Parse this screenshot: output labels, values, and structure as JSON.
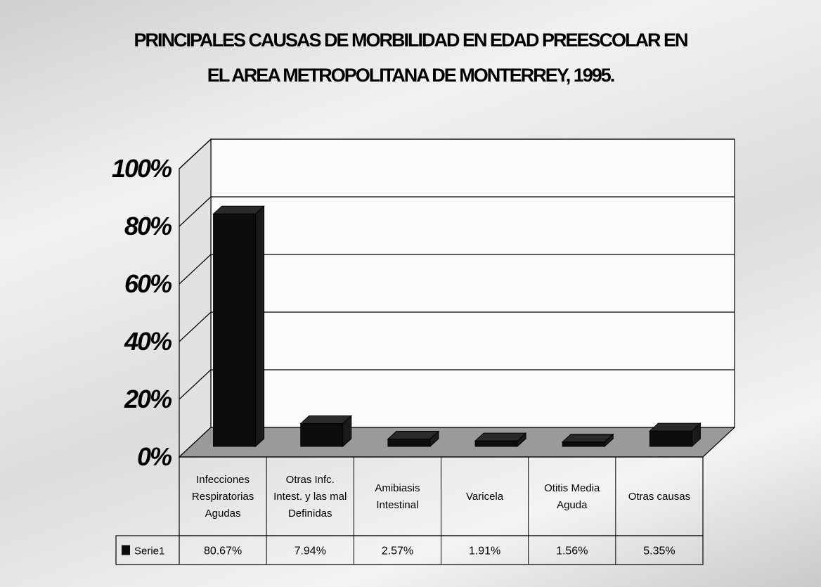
{
  "chart_data": {
    "type": "bar",
    "title": "PRINCIPALES CAUSAS DE MORBILIDAD EN EDAD PREESCOLAR EN",
    "subtitle": "EL AREA METROPOLITANA DE MONTERREY, 1995.",
    "categories": [
      [
        "Infecciones",
        "Respiratorias",
        "Agudas"
      ],
      [
        "Otras Infc.",
        "Intest. y las mal",
        "Definidas"
      ],
      [
        "Amibiasis",
        "Intestinal"
      ],
      [
        "Varicela"
      ],
      [
        "Otitis Media",
        "Aguda"
      ],
      [
        "Otras causas"
      ]
    ],
    "series": [
      {
        "name": "Serie1",
        "values": [
          80.67,
          7.94,
          2.57,
          1.91,
          1.56,
          5.35
        ],
        "labels": [
          "80.67%",
          "7.94%",
          "2.57%",
          "1.91%",
          "1.56%",
          "5.35%"
        ],
        "color": "#0d0d0d"
      }
    ],
    "yticks": [
      "0%",
      "20%",
      "40%",
      "60%",
      "80%",
      "100%"
    ],
    "ylim": [
      0,
      100
    ],
    "grid": true,
    "legend": "data-table"
  }
}
